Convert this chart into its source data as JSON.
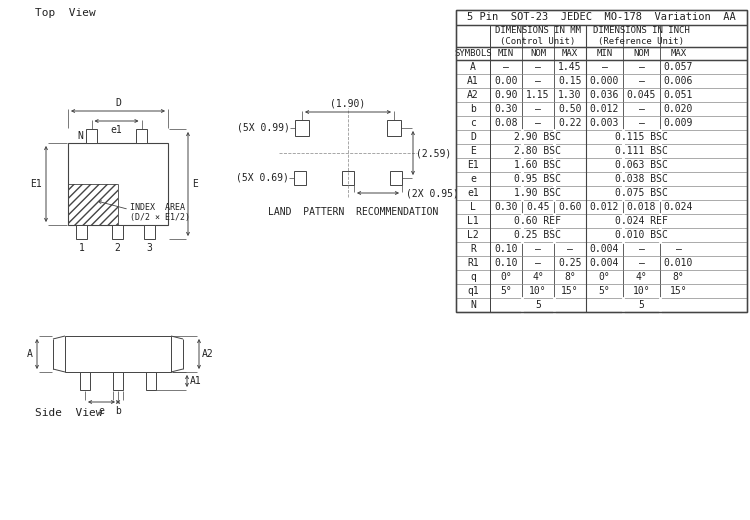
{
  "table_header": "5 Pin  SOT-23  JEDEC  MO-178  Variation  AA",
  "rows": [
    [
      "A",
      "—",
      "—",
      "1.45",
      "—",
      "—",
      "0.057"
    ],
    [
      "A1",
      "0.00",
      "—",
      "0.15",
      "0.000",
      "—",
      "0.006"
    ],
    [
      "A2",
      "0.90",
      "1.15",
      "1.30",
      "0.036",
      "0.045",
      "0.051"
    ],
    [
      "b",
      "0.30",
      "—",
      "0.50",
      "0.012",
      "—",
      "0.020"
    ],
    [
      "c",
      "0.08",
      "—",
      "0.22",
      "0.003",
      "—",
      "0.009"
    ],
    [
      "D",
      "2.90 BSC",
      "",
      "",
      "0.115 BSC",
      "",
      ""
    ],
    [
      "E",
      "2.80 BSC",
      "",
      "",
      "0.111 BSC",
      "",
      ""
    ],
    [
      "E1",
      "1.60 BSC",
      "",
      "",
      "0.063 BSC",
      "",
      ""
    ],
    [
      "e",
      "0.95 BSC",
      "",
      "",
      "0.038 BSC",
      "",
      ""
    ],
    [
      "e1",
      "1.90 BSC",
      "",
      "",
      "0.075 BSC",
      "",
      ""
    ],
    [
      "L",
      "0.30",
      "0.45",
      "0.60",
      "0.012",
      "0.018",
      "0.024"
    ],
    [
      "L1",
      "0.60 REF",
      "",
      "",
      "0.024 REF",
      "",
      ""
    ],
    [
      "L2",
      "0.25 BSC",
      "",
      "",
      "0.010 BSC",
      "",
      ""
    ],
    [
      "R",
      "0.10",
      "—",
      "—",
      "0.004",
      "—",
      "—"
    ],
    [
      "R1",
      "0.10",
      "—",
      "0.25",
      "0.004",
      "—",
      "0.010"
    ],
    [
      "q",
      "0°",
      "4°",
      "8°",
      "0°",
      "4°",
      "8°"
    ],
    [
      "q1",
      "5°",
      "10°",
      "15°",
      "5°",
      "10°",
      "15°"
    ],
    [
      "N",
      "5",
      "",
      "",
      "5",
      "",
      ""
    ]
  ],
  "merged_rows": [
    "D",
    "E",
    "E1",
    "e",
    "e1",
    "L1",
    "L2",
    "N"
  ],
  "line_color": "#444444",
  "font_color": "#222222",
  "top_view_label": "Top  View",
  "side_view_label": "Side  View",
  "land_pattern_label": "LAND  PATTERN  RECOMMENDATION",
  "index_area_label": "INDEX  AREA\n(D/2 × E1/2)",
  "dim_D": "D",
  "dim_e1": "e1",
  "dim_E1": "E1",
  "dim_E": "E",
  "dim_N": "N",
  "dim_e": "e",
  "dim_b": "b",
  "dim_A": "A",
  "dim_A1": "A1",
  "dim_A2": "A2",
  "lp_190": "(1.90)",
  "lp_099": "(5X 0.99)",
  "lp_069": "(5X 0.69)",
  "lp_259": "(2.59)",
  "lp_095": "(2X 0.95)"
}
